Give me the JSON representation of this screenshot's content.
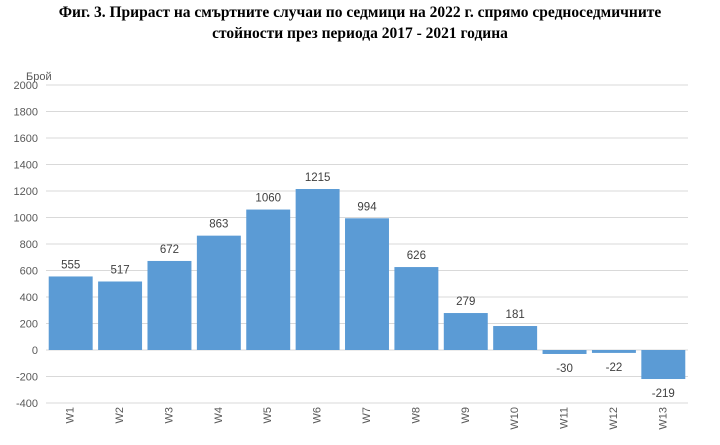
{
  "title_line1": "Фиг. 3. Прираст на смъртните случаи по седмици на 2022 г. спрямо средноседмичните",
  "title_line2": "стойности през периода 2017 - 2021 година",
  "chart_data": {
    "type": "bar",
    "ylabel": "Брой",
    "xlabel": "",
    "ylim": [
      -400,
      2000
    ],
    "ytick_step": 200,
    "grid": true,
    "legend": "none",
    "bar_color": "#5b9bd5",
    "categories": [
      "W1",
      "W2",
      "W3",
      "W4",
      "W5",
      "W6",
      "W7",
      "W8",
      "W9",
      "W10",
      "W11",
      "W12",
      "W13"
    ],
    "values": [
      555,
      517,
      672,
      863,
      1060,
      1215,
      994,
      626,
      279,
      181,
      -30,
      -22,
      -219
    ]
  }
}
